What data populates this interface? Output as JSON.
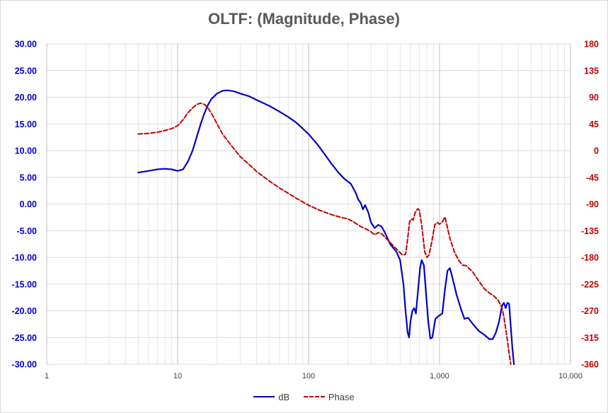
{
  "chart_data": {
    "type": "line",
    "title": "OLTF: (Magnitude, Phase)",
    "x_scale": "log",
    "xlim": [
      1,
      10000
    ],
    "x_ticks": [
      {
        "value": 1,
        "label": "1"
      },
      {
        "value": 10,
        "label": "10"
      },
      {
        "value": 100,
        "label": "100"
      },
      {
        "value": 1000,
        "label": "1,000"
      },
      {
        "value": 10000,
        "label": "10,000"
      }
    ],
    "y_left": {
      "ylim": [
        -30,
        30
      ],
      "ticks": [
        30,
        25,
        20,
        15,
        10,
        5,
        0,
        -5,
        -10,
        -15,
        -20,
        -25,
        -30
      ],
      "tick_labels": [
        "30.00",
        "25.00",
        "20.00",
        "15.00",
        "10.00",
        "5.00",
        "0.00",
        "-5.00",
        "-10.00",
        "-15.00",
        "-20.00",
        "-25.00",
        "-30.00"
      ],
      "color": "#0000cc"
    },
    "y_right": {
      "ylim": [
        -360,
        180
      ],
      "ticks": [
        180,
        135,
        90,
        45,
        0,
        -45,
        -90,
        -135,
        -180,
        -225,
        -270,
        -315,
        -360
      ],
      "tick_labels": [
        "180",
        "135",
        "90",
        "45",
        "0",
        "-45",
        "-90",
        "-135",
        "-180",
        "-225",
        "-270",
        "-315",
        "-360"
      ],
      "color": "#c00000"
    },
    "grid": true,
    "legend_position": "bottom",
    "series": [
      {
        "name": "dB",
        "axis": "left",
        "color": "#0000cc",
        "style": "solid",
        "points": [
          [
            5,
            5.9
          ],
          [
            6,
            6.2
          ],
          [
            7,
            6.5
          ],
          [
            8,
            6.6
          ],
          [
            9,
            6.5
          ],
          [
            10,
            6.2
          ],
          [
            11,
            6.5
          ],
          [
            12,
            8.0
          ],
          [
            13,
            10.0
          ],
          [
            14,
            12.6
          ],
          [
            15,
            15.0
          ],
          [
            16,
            17.0
          ],
          [
            17,
            18.5
          ],
          [
            18,
            19.6
          ],
          [
            20,
            20.7
          ],
          [
            22,
            21.2
          ],
          [
            24,
            21.3
          ],
          [
            27,
            21.1
          ],
          [
            30,
            20.7
          ],
          [
            35,
            20.2
          ],
          [
            40,
            19.5
          ],
          [
            50,
            18.4
          ],
          [
            60,
            17.3
          ],
          [
            70,
            16.3
          ],
          [
            80,
            15.3
          ],
          [
            100,
            13.1
          ],
          [
            120,
            10.8
          ],
          [
            150,
            7.5
          ],
          [
            170,
            5.8
          ],
          [
            190,
            4.6
          ],
          [
            210,
            3.8
          ],
          [
            220,
            2.9
          ],
          [
            230,
            2.0
          ],
          [
            240,
            0.8
          ],
          [
            250,
            0.2
          ],
          [
            260,
            -1.0
          ],
          [
            270,
            -0.2
          ],
          [
            285,
            -1.5
          ],
          [
            300,
            -3.5
          ],
          [
            320,
            -4.5
          ],
          [
            340,
            -3.9
          ],
          [
            360,
            -4.2
          ],
          [
            380,
            -5.2
          ],
          [
            420,
            -7.5
          ],
          [
            470,
            -9.0
          ],
          [
            500,
            -10.5
          ],
          [
            530,
            -15.0
          ],
          [
            550,
            -20.0
          ],
          [
            570,
            -24.0
          ],
          [
            585,
            -25.0
          ],
          [
            600,
            -22.0
          ],
          [
            620,
            -20.0
          ],
          [
            640,
            -19.5
          ],
          [
            660,
            -20.5
          ],
          [
            680,
            -17.0
          ],
          [
            710,
            -12.0
          ],
          [
            730,
            -10.5
          ],
          [
            760,
            -11.5
          ],
          [
            790,
            -17.0
          ],
          [
            820,
            -22.0
          ],
          [
            850,
            -25.2
          ],
          [
            880,
            -25.0
          ],
          [
            930,
            -21.5
          ],
          [
            980,
            -21.0
          ],
          [
            1050,
            -20.5
          ],
          [
            1100,
            -16.0
          ],
          [
            1150,
            -12.5
          ],
          [
            1200,
            -12.0
          ],
          [
            1260,
            -14.0
          ],
          [
            1350,
            -17.0
          ],
          [
            1450,
            -19.5
          ],
          [
            1550,
            -21.5
          ],
          [
            1650,
            -21.3
          ],
          [
            1800,
            -22.5
          ],
          [
            2000,
            -23.8
          ],
          [
            2200,
            -24.5
          ],
          [
            2400,
            -25.3
          ],
          [
            2550,
            -25.3
          ],
          [
            2700,
            -24.0
          ],
          [
            2850,
            -22.0
          ],
          [
            3000,
            -19.0
          ],
          [
            3100,
            -18.5
          ],
          [
            3200,
            -19.5
          ],
          [
            3300,
            -18.5
          ],
          [
            3400,
            -18.7
          ],
          [
            3500,
            -23.0
          ],
          [
            3600,
            -27.0
          ],
          [
            3700,
            -30.0
          ]
        ]
      },
      {
        "name": "Phase",
        "axis": "right",
        "color": "#c00000",
        "style": "dashed",
        "points": [
          [
            5,
            28
          ],
          [
            6,
            29
          ],
          [
            7,
            31
          ],
          [
            8,
            34
          ],
          [
            9,
            37
          ],
          [
            10,
            42
          ],
          [
            11,
            52
          ],
          [
            12,
            64
          ],
          [
            13,
            72
          ],
          [
            14,
            78
          ],
          [
            15,
            80
          ],
          [
            16,
            78
          ],
          [
            17,
            72
          ],
          [
            18,
            64
          ],
          [
            20,
            45
          ],
          [
            22,
            28
          ],
          [
            25,
            12
          ],
          [
            30,
            -10
          ],
          [
            35,
            -23
          ],
          [
            40,
            -35
          ],
          [
            50,
            -51
          ],
          [
            60,
            -63
          ],
          [
            70,
            -72
          ],
          [
            80,
            -80
          ],
          [
            100,
            -92
          ],
          [
            120,
            -100
          ],
          [
            150,
            -108
          ],
          [
            180,
            -113
          ],
          [
            200,
            -115
          ],
          [
            220,
            -120
          ],
          [
            250,
            -128
          ],
          [
            280,
            -133
          ],
          [
            300,
            -137
          ],
          [
            320,
            -142
          ],
          [
            340,
            -138
          ],
          [
            360,
            -140
          ],
          [
            400,
            -150
          ],
          [
            450,
            -162
          ],
          [
            500,
            -172
          ],
          [
            520,
            -176
          ],
          [
            550,
            -175
          ],
          [
            570,
            -150
          ],
          [
            590,
            -120
          ],
          [
            610,
            -115
          ],
          [
            630,
            -117
          ],
          [
            650,
            -105
          ],
          [
            680,
            -98
          ],
          [
            700,
            -100
          ],
          [
            730,
            -125
          ],
          [
            770,
            -170
          ],
          [
            800,
            -180
          ],
          [
            830,
            -176
          ],
          [
            870,
            -155
          ],
          [
            920,
            -125
          ],
          [
            960,
            -121
          ],
          [
            1000,
            -124
          ],
          [
            1050,
            -120
          ],
          [
            1100,
            -112
          ],
          [
            1150,
            -130
          ],
          [
            1200,
            -148
          ],
          [
            1300,
            -171
          ],
          [
            1400,
            -185
          ],
          [
            1500,
            -193
          ],
          [
            1600,
            -194
          ],
          [
            1800,
            -205
          ],
          [
            2000,
            -220
          ],
          [
            2200,
            -233
          ],
          [
            2400,
            -240
          ],
          [
            2600,
            -245
          ],
          [
            2800,
            -252
          ],
          [
            3000,
            -265
          ],
          [
            3100,
            -280
          ],
          [
            3200,
            -300
          ],
          [
            3300,
            -320
          ],
          [
            3400,
            -342
          ],
          [
            3500,
            -360
          ]
        ]
      }
    ]
  }
}
